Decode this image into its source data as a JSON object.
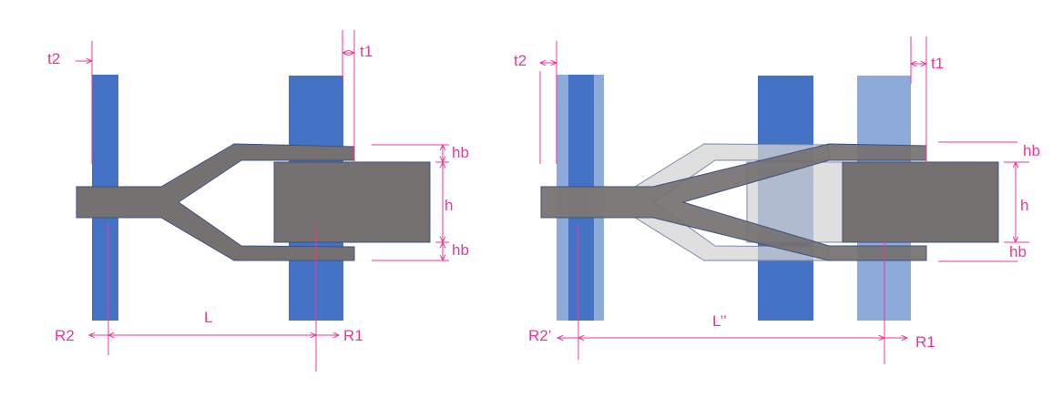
{
  "colors": {
    "bar_blue": "#4472c4",
    "bar_blue_light": "#8eaadb",
    "part_gray": "#757170",
    "part_gray_ghost": "#d4d4d4",
    "dimension_magenta": "#e8389a"
  },
  "left_panel": {
    "labels": {
      "t2": "t2",
      "t1": "t1",
      "hb_top": "hb",
      "h": "h",
      "hb_bottom": "hb",
      "L": "L",
      "R2": "R2",
      "R1": "R1"
    }
  },
  "right_panel": {
    "labels": {
      "t2": "t2",
      "t1": "t1",
      "hb_top": "hb",
      "h": "h",
      "hb_bottom": "hb",
      "L": "L’’",
      "R2": "R2’",
      "R1": "R1"
    }
  }
}
